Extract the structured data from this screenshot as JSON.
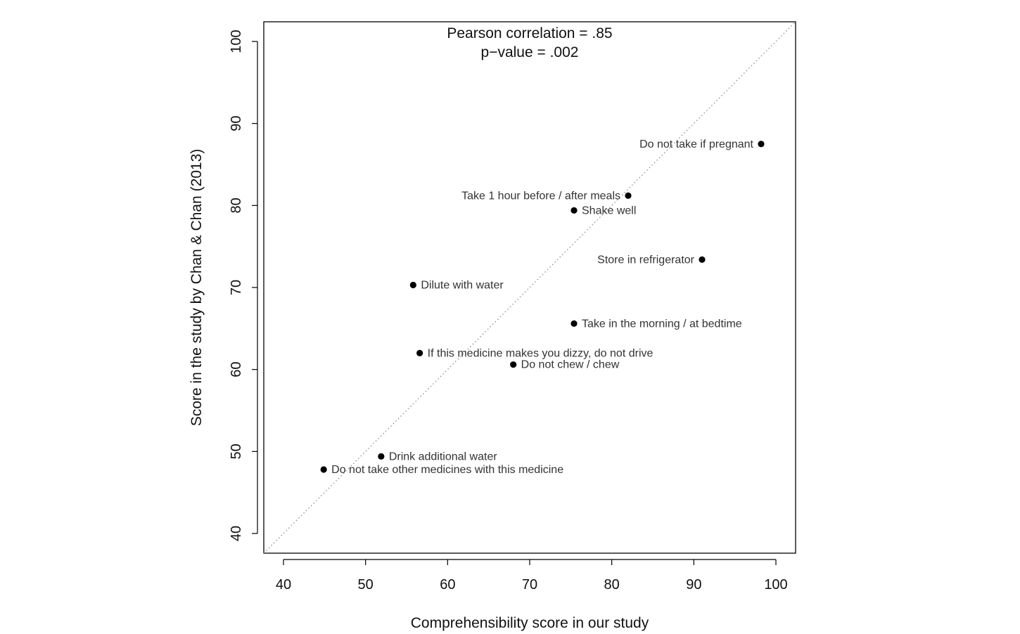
{
  "chart_data": {
    "type": "scatter",
    "title": "Pearson correlation = .85",
    "subtitle": "p−value = .002",
    "xlabel": "Comprehensibility score in our study",
    "ylabel": "Score in the study by Chan & Chan (2013)",
    "xlim": [
      37.6,
      102.4
    ],
    "ylim": [
      37.6,
      102.4
    ],
    "xticks": [
      40,
      50,
      60,
      70,
      80,
      90,
      100
    ],
    "yticks": [
      40,
      50,
      60,
      70,
      80,
      90,
      100
    ],
    "xtick_labels": [
      "40",
      "50",
      "60",
      "70",
      "80",
      "90",
      "100"
    ],
    "ytick_labels": [
      "40",
      "50",
      "60",
      "70",
      "80",
      "90",
      "100"
    ],
    "reference_line": {
      "type": "identity",
      "style": "dotted",
      "color": "#808080"
    },
    "points": [
      {
        "label": "Do not take if pregnant",
        "x": 98.2,
        "y": 87.5,
        "label_side": "left"
      },
      {
        "label": "Take 1 hour before / after meals",
        "x": 82.0,
        "y": 81.2,
        "label_side": "left"
      },
      {
        "label": "Shake well",
        "x": 75.4,
        "y": 79.4,
        "label_side": "right"
      },
      {
        "label": "Store in refrigerator",
        "x": 91.0,
        "y": 73.4,
        "label_side": "left"
      },
      {
        "label": "Dilute with water",
        "x": 55.8,
        "y": 70.3,
        "label_side": "right"
      },
      {
        "label": "Take in the morning / at bedtime",
        "x": 75.4,
        "y": 65.6,
        "label_side": "right"
      },
      {
        "label": "If this medicine makes you dizzy, do not drive",
        "x": 56.6,
        "y": 62.0,
        "label_side": "right"
      },
      {
        "label": "Do not chew / chew",
        "x": 68.0,
        "y": 60.6,
        "label_side": "right"
      },
      {
        "label": "Drink additional water",
        "x": 51.9,
        "y": 49.4,
        "label_side": "right"
      },
      {
        "label": "Do not take other medicines with this medicine",
        "x": 44.9,
        "y": 47.8,
        "label_side": "right"
      }
    ],
    "marker_color": "#000000"
  }
}
